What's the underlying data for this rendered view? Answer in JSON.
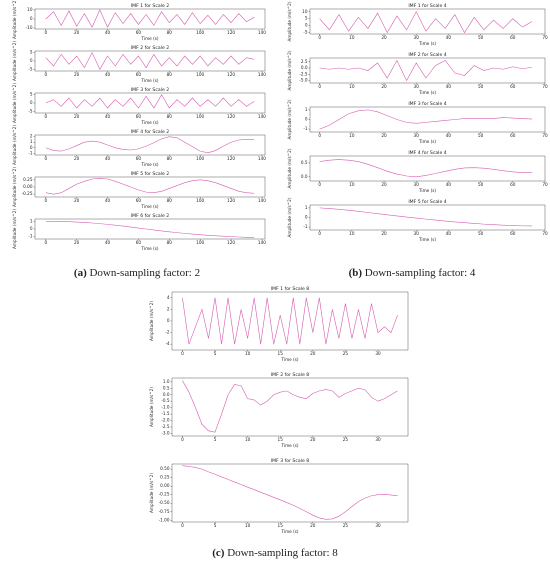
{
  "captions": [
    {
      "label": "(a)",
      "text": "Down-sampling factor: 2"
    },
    {
      "label": "(b)",
      "text": "Down-sampling factor: 4"
    },
    {
      "label": "(c)",
      "text": "Down-sampling factor: 8"
    }
  ],
  "chart_data": [
    {
      "type": "line",
      "title": "IMF 1 for Scale 2",
      "xlabel": "Time (s)",
      "ylabel": "Amplitude (m/s^2)",
      "x": [
        0,
        5,
        10,
        15,
        20,
        25,
        30,
        35,
        40,
        45,
        50,
        55,
        60,
        65,
        70,
        75,
        80,
        85,
        90,
        95,
        100,
        105,
        110,
        115,
        120,
        125,
        130,
        135
      ],
      "series": [
        {
          "color": "#d65db1",
          "values": [
            0,
            8,
            -7,
            9,
            -8,
            6,
            -9,
            10,
            -9,
            7,
            -5,
            6,
            -6,
            5,
            -7,
            8,
            -4,
            5,
            -6,
            7,
            -5,
            4,
            -6,
            5,
            -4,
            6,
            -3,
            2
          ]
        }
      ],
      "xlim": [
        -7,
        142
      ],
      "xticks": [
        0,
        20,
        40,
        60,
        80,
        100,
        120,
        140
      ],
      "ylim": [
        -11,
        11
      ],
      "yticks": [
        -10,
        0,
        10
      ]
    },
    {
      "type": "line",
      "title": "IMF 2 for Scale 2",
      "xlabel": "Time (s)",
      "ylabel": "Amplitude (m/s^2)",
      "x": [
        0,
        5,
        10,
        15,
        20,
        25,
        30,
        35,
        40,
        45,
        50,
        55,
        60,
        65,
        70,
        75,
        80,
        85,
        90,
        95,
        100,
        105,
        110,
        115,
        120,
        125,
        130,
        135
      ],
      "series": [
        {
          "color": "#d65db1",
          "values": [
            2,
            -3,
            4,
            -2,
            3,
            -4,
            5,
            -5,
            3,
            -3,
            4,
            -2,
            3,
            -4,
            4,
            -3,
            2,
            -3,
            3,
            -2,
            3,
            -3,
            2,
            -2,
            3,
            -2,
            2,
            1
          ]
        }
      ],
      "xlim": [
        -7,
        142
      ],
      "xticks": [
        0,
        20,
        40,
        60,
        80,
        100,
        120,
        140
      ],
      "ylim": [
        -6,
        6
      ],
      "yticks": [
        -5,
        0,
        5
      ]
    },
    {
      "type": "line",
      "title": "IMF 3 for Scale 2",
      "xlabel": "Time (s)",
      "ylabel": "Amplitude (m/s^2)",
      "x": [
        0,
        5,
        10,
        15,
        20,
        25,
        30,
        35,
        40,
        45,
        50,
        55,
        60,
        65,
        70,
        75,
        80,
        85,
        90,
        95,
        100,
        105,
        110,
        115,
        120,
        125,
        130,
        135
      ],
      "series": [
        {
          "color": "#d65db1",
          "values": [
            0,
            2,
            -2,
            3,
            -3,
            2,
            -2,
            3,
            -3,
            2,
            -2,
            3,
            -3,
            4,
            -3,
            5,
            -3,
            2,
            -2,
            3,
            -2,
            2,
            -2,
            3,
            -2,
            2,
            -2,
            1
          ]
        }
      ],
      "xlim": [
        -7,
        142
      ],
      "xticks": [
        0,
        20,
        40,
        60,
        80,
        100,
        120,
        140
      ],
      "ylim": [
        -6,
        6
      ],
      "yticks": [
        -5,
        0,
        5
      ]
    },
    {
      "type": "line",
      "title": "IMF 4 for Scale 2",
      "xlabel": "Time (s)",
      "ylabel": "Amplitude (m/s^2)",
      "x": [
        0,
        5,
        10,
        15,
        20,
        25,
        30,
        35,
        40,
        45,
        50,
        55,
        60,
        65,
        70,
        75,
        80,
        85,
        90,
        95,
        100,
        105,
        110,
        115,
        120,
        125,
        130,
        135
      ],
      "series": [
        {
          "color": "#d65db1",
          "values": [
            0,
            -0.5,
            -0.6,
            -0.2,
            0.4,
            1.0,
            1.2,
            1.0,
            0.5,
            0,
            -0.3,
            -0.4,
            -0.2,
            0.3,
            0.9,
            1.6,
            2.0,
            1.8,
            1.0,
            0.2,
            -0.6,
            -0.9,
            -0.5,
            0.3,
            1.0,
            1.4,
            1.5,
            1.5
          ]
        }
      ],
      "xlim": [
        -7,
        142
      ],
      "xticks": [
        0,
        20,
        40,
        60,
        80,
        100,
        120,
        140
      ],
      "ylim": [
        -1.3,
        2.3
      ],
      "yticks": [
        -1,
        0,
        1,
        2
      ]
    },
    {
      "type": "line",
      "title": "IMF 5 for Scale 2",
      "xlabel": "Time (s)",
      "ylabel": "Amplitude (m/s^2)",
      "x": [
        0,
        5,
        10,
        15,
        20,
        25,
        30,
        35,
        40,
        45,
        50,
        55,
        60,
        65,
        70,
        75,
        80,
        85,
        90,
        95,
        100,
        105,
        110,
        115,
        120,
        125,
        130,
        135
      ],
      "series": [
        {
          "color": "#d65db1",
          "values": [
            -0.2,
            -0.25,
            -0.2,
            -0.05,
            0.1,
            0.2,
            0.28,
            0.3,
            0.28,
            0.2,
            0.1,
            0,
            -0.1,
            -0.18,
            -0.2,
            -0.15,
            -0.05,
            0.05,
            0.15,
            0.22,
            0.25,
            0.22,
            0.15,
            0.05,
            -0.05,
            -0.15,
            -0.2,
            -0.22
          ]
        }
      ],
      "xlim": [
        -7,
        142
      ],
      "xticks": [
        0,
        20,
        40,
        60,
        80,
        100,
        120,
        140
      ],
      "ylim": [
        -0.35,
        0.35
      ],
      "yticks": [
        -0.25,
        {
          "value": 0,
          "label": "0.00"
        },
        0.25
      ]
    },
    {
      "type": "line",
      "title": "IMF 6 for Scale 2",
      "xlabel": "Time (s)",
      "ylabel": "Amplitude (m/s^2)",
      "x": [
        0,
        5,
        10,
        15,
        20,
        25,
        30,
        35,
        40,
        45,
        50,
        55,
        60,
        65,
        70,
        75,
        80,
        85,
        90,
        95,
        100,
        105,
        110,
        115,
        120,
        125,
        130,
        135
      ],
      "series": [
        {
          "color": "#d65db1",
          "values": [
            1,
            1,
            0.98,
            0.95,
            0.9,
            0.85,
            0.78,
            0.7,
            0.6,
            0.5,
            0.38,
            0.25,
            0.12,
            0,
            -0.12,
            -0.25,
            -0.36,
            -0.47,
            -0.57,
            -0.66,
            -0.74,
            -0.82,
            -0.88,
            -0.94,
            -0.99,
            -1.04,
            -1.08,
            -1.1
          ]
        }
      ],
      "xlim": [
        -7,
        142
      ],
      "xticks": [
        0,
        20,
        40,
        60,
        80,
        100,
        120,
        140
      ],
      "ylim": [
        -1.3,
        1.3
      ],
      "yticks": [
        -1,
        0,
        1
      ]
    },
    {
      "type": "line",
      "title": "IMF 1 for Scale 4",
      "xlabel": "Time (s)",
      "ylabel": "Amplitude (m/s^2)",
      "x": [
        0,
        3,
        6,
        9,
        12,
        15,
        18,
        21,
        24,
        27,
        30,
        33,
        36,
        39,
        42,
        45,
        48,
        51,
        54,
        57,
        60,
        63,
        66
      ],
      "series": [
        {
          "color": "#d65db1",
          "values": [
            5,
            -3,
            8,
            -4,
            6,
            -2,
            9,
            -5,
            7,
            -3,
            10,
            -4,
            5,
            -2,
            8,
            -5,
            6,
            -3,
            4,
            -2,
            5,
            -1,
            3
          ]
        }
      ],
      "xlim": [
        -3,
        70
      ],
      "xticks": [
        0,
        10,
        20,
        30,
        40,
        50,
        60,
        70
      ],
      "ylim": [
        -6,
        12
      ],
      "yticks": [
        -5,
        0,
        5,
        10
      ]
    },
    {
      "type": "line",
      "title": "IMF 2 for Scale 4",
      "xlabel": "Time (s)",
      "ylabel": "Amplitude (m/s^2)",
      "x": [
        0,
        3,
        6,
        9,
        12,
        15,
        18,
        21,
        24,
        27,
        30,
        33,
        36,
        39,
        42,
        45,
        48,
        51,
        54,
        57,
        60,
        63,
        66
      ],
      "series": [
        {
          "color": "#d65db1",
          "values": [
            0,
            -0.5,
            0,
            -0.5,
            0,
            -1,
            2,
            -4,
            3,
            -5,
            2,
            -4,
            1,
            3,
            -2,
            -3,
            1,
            -1,
            0,
            -0.5,
            0.5,
            -0.3,
            0.3
          ]
        }
      ],
      "xlim": [
        -3,
        70
      ],
      "xticks": [
        0,
        10,
        20,
        30,
        40,
        50,
        60,
        70
      ],
      "ylim": [
        -6,
        4
      ],
      "yticks": [
        {
          "value": -5,
          "label": "-5.0"
        },
        -2.5,
        {
          "value": 0,
          "label": "0.0"
        },
        2.5
      ]
    },
    {
      "type": "line",
      "title": "IMF 3 for Scale 4",
      "xlabel": "Time (s)",
      "ylabel": "Amplitude (m/s^2)",
      "x": [
        0,
        3,
        6,
        9,
        12,
        15,
        18,
        21,
        24,
        27,
        30,
        33,
        36,
        39,
        42,
        45,
        48,
        51,
        54,
        57,
        60,
        63,
        66
      ],
      "series": [
        {
          "color": "#d65db1",
          "values": [
            -1,
            -0.6,
            0,
            0.6,
            0.9,
            1.0,
            0.8,
            0.4,
            0,
            -0.3,
            -0.4,
            -0.3,
            -0.2,
            -0.1,
            0,
            0.1,
            0.1,
            0.1,
            0.1,
            0.2,
            0.15,
            0.1,
            0.05
          ]
        }
      ],
      "xlim": [
        -3,
        70
      ],
      "xticks": [
        0,
        10,
        20,
        30,
        40,
        50,
        60,
        70
      ],
      "ylim": [
        -1.3,
        1.3
      ],
      "yticks": [
        -1,
        0,
        1
      ]
    },
    {
      "type": "line",
      "title": "IMF 4 for Scale 4",
      "xlabel": "Time (s)",
      "ylabel": "Amplitude (m/s^2)",
      "x": [
        0,
        3,
        6,
        9,
        12,
        15,
        18,
        21,
        24,
        27,
        30,
        33,
        36,
        39,
        42,
        45,
        48,
        51,
        54,
        57,
        60,
        63,
        66
      ],
      "series": [
        {
          "color": "#d65db1",
          "values": [
            0.55,
            0.6,
            0.62,
            0.6,
            0.55,
            0.45,
            0.33,
            0.2,
            0.1,
            0.03,
            0,
            0.05,
            0.12,
            0.2,
            0.27,
            0.32,
            0.33,
            0.31,
            0.27,
            0.22,
            0.18,
            0.15,
            0.15
          ]
        }
      ],
      "xlim": [
        -3,
        70
      ],
      "xticks": [
        0,
        10,
        20,
        30,
        40,
        50,
        60,
        70
      ],
      "ylim": [
        -0.15,
        0.75
      ],
      "yticks": [
        {
          "value": 0,
          "label": "0.0"
        },
        0.5
      ]
    },
    {
      "type": "line",
      "title": "IMF 5 for Scale 4",
      "xlabel": "Time (s)",
      "ylabel": "Amplitude (m/s^2)",
      "x": [
        0,
        3,
        6,
        9,
        12,
        15,
        18,
        21,
        24,
        27,
        30,
        33,
        36,
        39,
        42,
        45,
        48,
        51,
        54,
        57,
        60,
        63,
        66
      ],
      "series": [
        {
          "color": "#d65db1",
          "values": [
            1.0,
            0.93,
            0.85,
            0.75,
            0.64,
            0.52,
            0.4,
            0.28,
            0.16,
            0.05,
            -0.06,
            -0.17,
            -0.27,
            -0.37,
            -0.46,
            -0.54,
            -0.62,
            -0.69,
            -0.75,
            -0.8,
            -0.84,
            -0.87,
            -0.88
          ]
        }
      ],
      "xlim": [
        -3,
        70
      ],
      "xticks": [
        0,
        10,
        20,
        30,
        40,
        50,
        60,
        70
      ],
      "ylim": [
        -1.3,
        1.3
      ],
      "yticks": [
        -1,
        0,
        1
      ]
    },
    {
      "type": "line",
      "title": "IMF 1 for Scale 8",
      "xlabel": "Time (s)",
      "ylabel": "Amplitude (m/s^2)",
      "x": [
        0,
        1,
        2,
        3,
        4,
        5,
        6,
        7,
        8,
        9,
        10,
        11,
        12,
        13,
        14,
        15,
        16,
        17,
        18,
        19,
        20,
        21,
        22,
        23,
        24,
        25,
        26,
        27,
        28,
        29,
        30,
        31,
        32,
        33
      ],
      "series": [
        {
          "color": "#d65db1",
          "values": [
            4,
            -4,
            -1,
            2,
            -3,
            4,
            -4,
            4,
            -4,
            2,
            -3,
            4,
            -4,
            4,
            -4,
            1,
            -4,
            4,
            -4,
            4,
            -2,
            4,
            -4,
            2,
            -3,
            3,
            -3,
            2,
            -3,
            3,
            -2,
            -1,
            -2,
            1
          ]
        }
      ],
      "xlim": [
        -1.6,
        34.6
      ],
      "xticks": [
        0,
        5,
        10,
        15,
        20,
        25,
        30
      ],
      "ylim": [
        -5,
        5
      ],
      "yticks": [
        -4,
        -2,
        0,
        2,
        4
      ]
    },
    {
      "type": "line",
      "title": "IMF 2 for Scale 8",
      "xlabel": "Time (s)",
      "ylabel": "Amplitude (m/s^2)",
      "x": [
        0,
        1,
        2,
        3,
        4,
        5,
        6,
        7,
        8,
        9,
        10,
        11,
        12,
        13,
        14,
        15,
        16,
        17,
        18,
        19,
        20,
        21,
        22,
        23,
        24,
        25,
        26,
        27,
        28,
        29,
        30,
        31,
        32,
        33
      ],
      "series": [
        {
          "color": "#d65db1",
          "values": [
            1.1,
            0.2,
            -1.0,
            -2.3,
            -2.8,
            -2.9,
            -1.5,
            0,
            0.8,
            0.7,
            -0.3,
            -0.4,
            -0.8,
            -0.5,
            0,
            0.2,
            0.3,
            0,
            -0.2,
            -0.3,
            0.1,
            0.3,
            0.4,
            0.3,
            -0.2,
            0.1,
            0.3,
            0.5,
            0.4,
            -0.2,
            -0.5,
            -0.3,
            0,
            0.3
          ]
        }
      ],
      "xlim": [
        -1.6,
        34.6
      ],
      "xticks": [
        0,
        5,
        10,
        15,
        20,
        25,
        30
      ],
      "ylim": [
        -3.2,
        1.3
      ],
      "yticks": [
        {
          "value": -3,
          "label": "-3.0"
        },
        -2.5,
        {
          "value": -2,
          "label": "-2.0"
        },
        -1.5,
        {
          "value": -1,
          "label": "-1.0"
        },
        -0.5,
        {
          "value": 0,
          "label": "0.0"
        },
        0.5,
        {
          "value": 1,
          "label": "1.0"
        }
      ]
    },
    {
      "type": "line",
      "title": "IMF 3 for Scale 8",
      "xlabel": "Time (s)",
      "ylabel": "Amplitude (m/s^2)",
      "x": [
        0,
        1,
        2,
        3,
        4,
        5,
        6,
        7,
        8,
        9,
        10,
        11,
        12,
        13,
        14,
        15,
        16,
        17,
        18,
        19,
        20,
        21,
        22,
        23,
        24,
        25,
        26,
        27,
        28,
        29,
        30,
        31,
        32,
        33
      ],
      "series": [
        {
          "color": "#d65db1",
          "values": [
            0.6,
            0.58,
            0.55,
            0.5,
            0.42,
            0.35,
            0.27,
            0.2,
            0.12,
            0.05,
            -0.03,
            -0.1,
            -0.18,
            -0.25,
            -0.33,
            -0.4,
            -0.48,
            -0.56,
            -0.65,
            -0.75,
            -0.85,
            -0.93,
            -0.97,
            -0.96,
            -0.88,
            -0.75,
            -0.6,
            -0.45,
            -0.35,
            -0.28,
            -0.25,
            -0.24,
            -0.26,
            -0.28
          ]
        }
      ],
      "xlim": [
        -1.6,
        34.6
      ],
      "xticks": [
        0,
        5,
        10,
        15,
        20,
        25,
        30
      ],
      "ylim": [
        -1.05,
        0.65
      ],
      "yticks": [
        {
          "value": -1,
          "label": "-1.00"
        },
        -0.75,
        {
          "value": -0.5,
          "label": "-0.50"
        },
        -0.25,
        {
          "value": 0,
          "label": "0.00"
        },
        0.25,
        {
          "value": 0.5,
          "label": "0.50"
        }
      ]
    }
  ]
}
